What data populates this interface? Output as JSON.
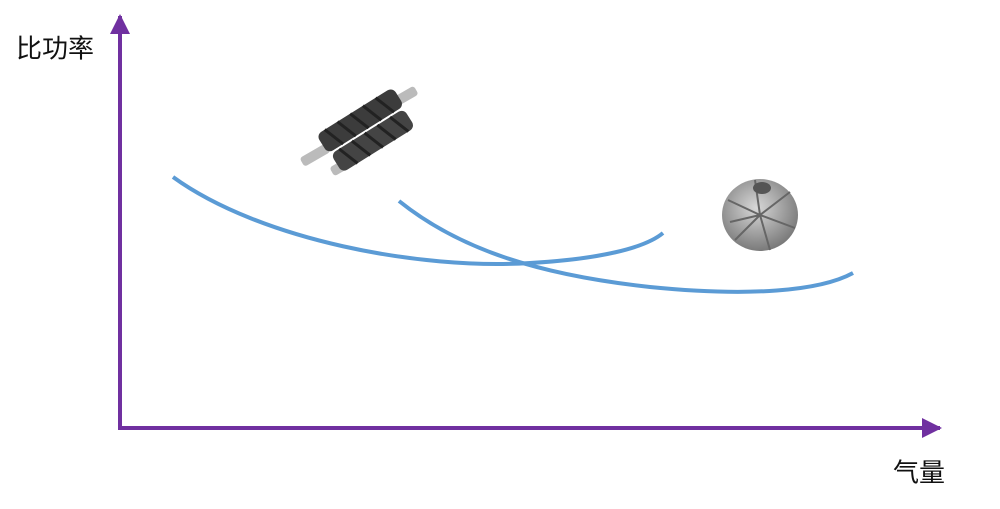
{
  "axes": {
    "y_label": "比功率",
    "x_label": "气量"
  }
}
